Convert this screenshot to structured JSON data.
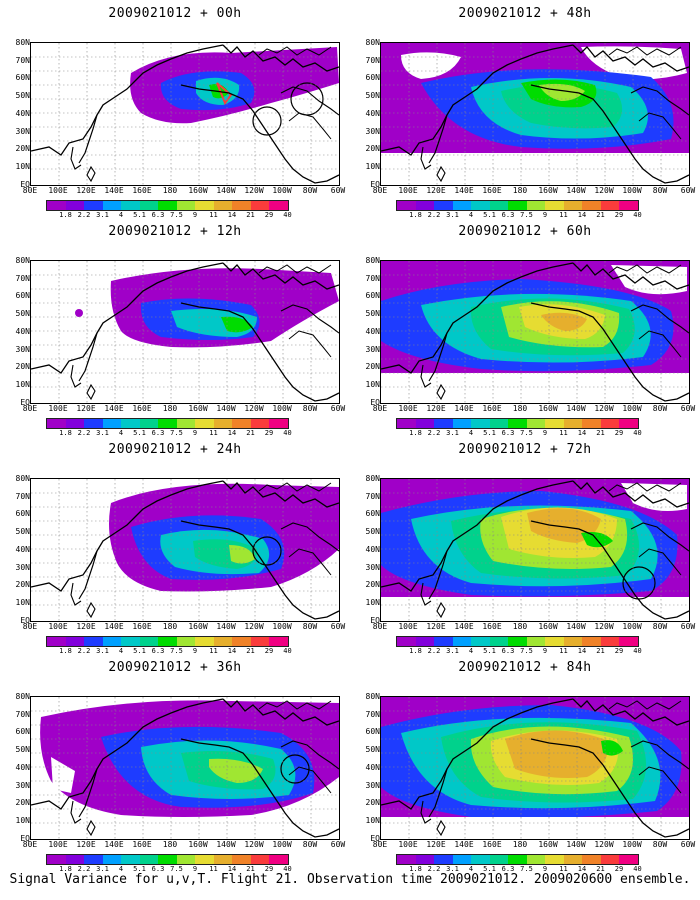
{
  "panels": [
    {
      "title": "2009021012 + 00h",
      "fill": "p00"
    },
    {
      "title": "2009021012 + 48h",
      "fill": "p48"
    },
    {
      "title": "2009021012 + 12h",
      "fill": "p12"
    },
    {
      "title": "2009021012 + 60h",
      "fill": "p60"
    },
    {
      "title": "2009021012 + 24h",
      "fill": "p24"
    },
    {
      "title": "2009021012 + 72h",
      "fill": "p72"
    },
    {
      "title": "2009021012 + 36h",
      "fill": "p36"
    },
    {
      "title": "2009021012 + 84h",
      "fill": "p84"
    }
  ],
  "lat_labels": [
    "80N",
    "70N",
    "60N",
    "50N",
    "40N",
    "30N",
    "20N",
    "10N",
    "EQ"
  ],
  "lon_labels": [
    "80E",
    "100E",
    "120E",
    "140E",
    "160E",
    "180",
    "160W",
    "140W",
    "120W",
    "100W",
    "80W",
    "60W"
  ],
  "colorbar": {
    "labels": [
      "1.8",
      "2.2",
      "3.1",
      "4",
      "5.1",
      "6.3",
      "7.5",
      "9",
      "11",
      "14",
      "21",
      "29",
      "40"
    ],
    "colors": [
      "#a000c8",
      "#8200dc",
      "#1e3cff",
      "#00a0ff",
      "#00c8c8",
      "#00d28c",
      "#00dc00",
      "#a0e632",
      "#e6dc32",
      "#e6af2d",
      "#f08228",
      "#fa3c3c",
      "#f00082"
    ]
  },
  "footer": "Signal Variance for u,v,T. Flight 21. Observation time 2009021012. 2009020600 ensemble."
}
